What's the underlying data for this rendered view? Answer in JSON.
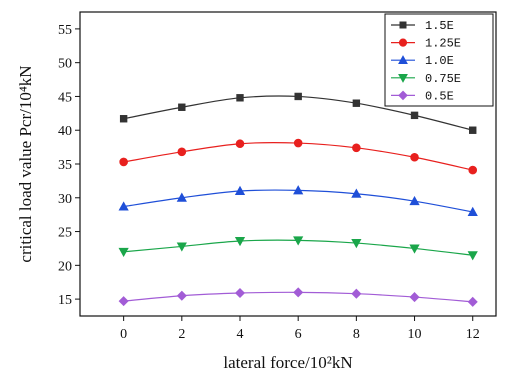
{
  "chart_data": {
    "type": "line",
    "xlabel": "lateral force/10²kN",
    "ylabel": "critical load value Pcr/10⁴kN",
    "xlim": [
      -1.5,
      12.8
    ],
    "ylim": [
      12.5,
      57.5
    ],
    "x": [
      0,
      2,
      4,
      6,
      8,
      10,
      12
    ],
    "xticks": [
      0,
      2,
      4,
      6,
      8,
      10,
      12
    ],
    "yticks": [
      15,
      20,
      25,
      30,
      35,
      40,
      45,
      50,
      55
    ],
    "grid": false,
    "legend_position": "top-right",
    "series": [
      {
        "name": "1.5E",
        "marker": "square",
        "color": "#333333",
        "values": [
          41.7,
          43.4,
          44.8,
          45.0,
          44.0,
          42.2,
          40.0
        ]
      },
      {
        "name": "1.25E",
        "marker": "circle",
        "color": "#e8201e",
        "values": [
          35.3,
          36.8,
          38.0,
          38.1,
          37.4,
          36.0,
          34.1
        ]
      },
      {
        "name": "1.0E",
        "marker": "triangle-up",
        "color": "#1f4fd8",
        "values": [
          28.7,
          30.0,
          31.0,
          31.1,
          30.6,
          29.5,
          27.9
        ]
      },
      {
        "name": "0.75E",
        "marker": "triangle-down",
        "color": "#1aa64a",
        "values": [
          22.0,
          22.8,
          23.6,
          23.7,
          23.3,
          22.5,
          21.5
        ]
      },
      {
        "name": "0.5E",
        "marker": "diamond",
        "color": "#a25cd6",
        "values": [
          14.7,
          15.5,
          15.9,
          16.0,
          15.8,
          15.3,
          14.6
        ]
      }
    ]
  }
}
